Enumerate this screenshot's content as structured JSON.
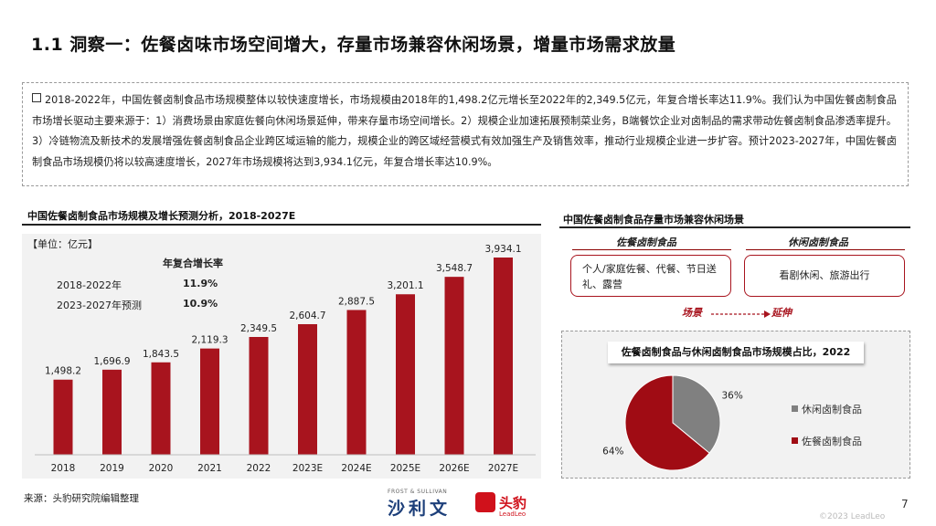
{
  "page": {
    "title": "1.1 洞察一：佐餐卤味市场空间增大，存量市场兼容休闲场景，增量市场需求放量",
    "summary": "2018-2022年，中国佐餐卤制食品市场规模整体以较快速度增长，市场规模由2018年的1,498.2亿元增长至2022年的2,349.5亿元，年复合增长率达11.9%。我们认为中国佐餐卤制食品市场增长驱动主要来源于：1）消费场景由家庭佐餐向休闲场景延伸，带来存量市场空间增长。2）规模企业加速拓展预制菜业务，B端餐饮企业对卤制品的需求带动佐餐卤制食品渗透率提升。3）冷链物流及新技术的发展增强佐餐卤制食品企业跨区域运输的能力，规模企业的跨区域经营模式有效加强生产及销售效率，推动行业规模企业进一步扩容。预计2023-2027年，中国佐餐卤制食品市场规模仍将以较高速度增长，2027年市场规模将达到3,934.1亿元，年复合增长率达10.9%。",
    "source": "来源：头豹研究院编辑整理",
    "page_number": "7",
    "copyright": "©2023 LeadLeo"
  },
  "left_panel": {
    "title": "中国佐餐卤制食品市场规模及增长预测分析，2018-2027E",
    "unit": "【单位：亿元】",
    "cagr_header": "年复合增长率",
    "cagr_rows": [
      {
        "period": "2018-2022年",
        "value": "11.9%"
      },
      {
        "period": "2023-2027年预测",
        "value": "10.9%"
      }
    ]
  },
  "chart_data": [
    {
      "type": "bar",
      "categories": [
        "2018",
        "2019",
        "2020",
        "2021",
        "2022",
        "2023E",
        "2024E",
        "2025E",
        "2026E",
        "2027E"
      ],
      "values": [
        1498.2,
        1696.9,
        1843.5,
        2119.3,
        2349.5,
        2604.7,
        2887.5,
        3201.1,
        3548.7,
        3934.1
      ],
      "value_labels": [
        "1,498.2",
        "1,696.9",
        "1,843.5",
        "2,119.3",
        "2,349.5",
        "2,604.7",
        "2,887.5",
        "3,201.1",
        "3,548.7",
        "3,934.1"
      ],
      "title": "中国佐餐卤制食品市场规模及增长预测分析，2018-2027E",
      "unit": "亿元",
      "color": "#a8141e",
      "grid": false
    },
    {
      "type": "pie",
      "title": "佐餐卤制食品与休闲卤制食品市场规模占比，2022",
      "slices": [
        {
          "name": "休闲卤制食品",
          "value": 36,
          "label": "36%",
          "color": "#808080"
        },
        {
          "name": "佐餐卤制食品",
          "value": 64,
          "label": "64%",
          "color": "#a00c14"
        }
      ],
      "legend_position": "right"
    }
  ],
  "right_panel": {
    "title": "中国佐餐卤制食品存量市场兼容休闲场景",
    "col1_header": "佐餐卤制食品",
    "col2_header": "休闲卤制食品",
    "box1_text": "个人/家庭佐餐、代餐、节日送礼、露营",
    "box2_text": "看剧休闲、旅游出行",
    "scene_label": "场景",
    "extend_label": "延伸"
  },
  "logos": {
    "frost_caption": "FROST & SULLIVAN",
    "frost_name": "沙利文",
    "leadleo_name": "头豹",
    "leadleo_sub": "LeadLeo"
  }
}
